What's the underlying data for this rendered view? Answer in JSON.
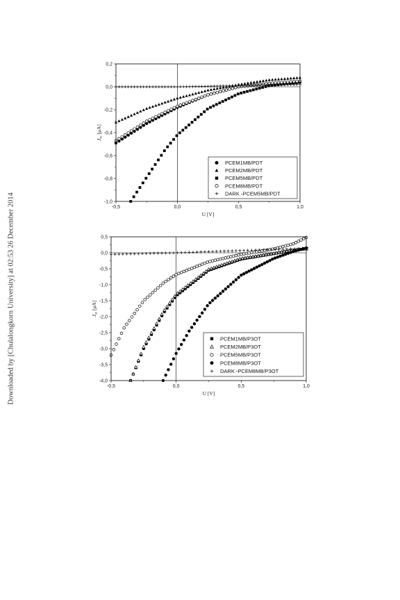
{
  "side_note": "Downloaded by [Chulalongkorn University] at 02:53 26 December 2014",
  "chart_data": [
    {
      "type": "scatter",
      "xlabel": "U [V]",
      "ylabel_main": "J",
      "ylabel_sub": "sc",
      "ylabel_unit": "[μA]",
      "xlim": [
        -0.5,
        1.0
      ],
      "ylim": [
        -1.0,
        0.2
      ],
      "xticks": [
        -0.5,
        0.0,
        0.5,
        1.0
      ],
      "xtick_labels": [
        "-0,5",
        "0,0",
        "0,5",
        "1,0"
      ],
      "yticks": [
        0.2,
        0.0,
        -0.2,
        -0.4,
        -0.6,
        -0.8,
        -1.0
      ],
      "ytick_labels": [
        "0,2",
        "0,0",
        "-0,2",
        "-0,4",
        "-0,6",
        "-0,8",
        "-1,0"
      ],
      "zero_lines": true,
      "legend_position": "bottom-right",
      "series": [
        {
          "name": "PCEM1MB/PDT",
          "marker": "filled-circle",
          "step": 0.025,
          "x": [
            -0.5,
            -0.25,
            0.0,
            0.25,
            0.5,
            0.75,
            1.0
          ],
          "y": [
            -0.49,
            -0.32,
            -0.18,
            -0.07,
            0.0,
            0.03,
            0.04
          ]
        },
        {
          "name": "PCEM2MB/PDT",
          "marker": "filled-triangle",
          "step": 0.025,
          "x": [
            -0.5,
            -0.25,
            0.0,
            0.25,
            0.5,
            0.75,
            1.0
          ],
          "y": [
            -0.31,
            -0.19,
            -0.1,
            -0.03,
            0.02,
            0.06,
            0.08
          ]
        },
        {
          "name": "PCEM5MB/PDT",
          "marker": "filled-square",
          "step": 0.025,
          "x": [
            -0.38,
            -0.25,
            -0.1,
            0.0,
            0.25,
            0.5,
            0.75,
            1.0
          ],
          "y": [
            -1.0,
            -0.79,
            -0.55,
            -0.42,
            -0.19,
            -0.06,
            0.01,
            0.04
          ]
        },
        {
          "name": "PCEM8MB/PDT",
          "marker": "open-circle",
          "step": 0.025,
          "x": [
            -0.5,
            -0.25,
            0.0,
            0.25,
            0.5,
            0.75,
            1.0
          ],
          "y": [
            -0.47,
            -0.3,
            -0.17,
            -0.07,
            0.0,
            0.03,
            0.05
          ]
        },
        {
          "name": "DARK -PCEM5MB/PDT",
          "marker": "plus",
          "step": 0.025,
          "x": [
            -0.5,
            0.0,
            0.5,
            1.0
          ],
          "y": [
            0.0,
            0.0,
            0.01,
            0.02
          ]
        }
      ]
    },
    {
      "type": "scatter",
      "xlabel": "U [V]",
      "ylabel_main": "J",
      "ylabel_sub": "sc",
      "ylabel_unit": "[μA]",
      "xlim": [
        -0.5,
        1.0
      ],
      "ylim": [
        -4.0,
        0.5
      ],
      "xticks": [
        -0.5,
        0.0,
        0.5,
        1.0
      ],
      "xtick_labels": [
        "-0,5",
        "0,0",
        "0,5",
        "1,0"
      ],
      "yticks": [
        0.5,
        0.0,
        -0.5,
        -1.0,
        -1.5,
        -2.0,
        -2.5,
        -3.0,
        -3.5,
        -4.0
      ],
      "ytick_labels": [
        "0,5",
        "0,0",
        "-0,5",
        "-1,0",
        "-1,5",
        "-2,0",
        "-2,5",
        "-3,0",
        "-3,5",
        "-4,0"
      ],
      "zero_lines": true,
      "legend_position": "bottom-right",
      "series": [
        {
          "name": "PCEM1MB/P3OT",
          "marker": "filled-square",
          "step": 0.02,
          "x": [
            -0.35,
            -0.25,
            -0.1,
            0.0,
            0.25,
            0.5,
            0.75,
            0.9,
            1.0
          ],
          "y": [
            -4.0,
            -3.0,
            -1.9,
            -1.35,
            -0.55,
            -0.2,
            -0.03,
            0.08,
            0.12
          ]
        },
        {
          "name": "PCEM2MB/P3OT",
          "marker": "open-triangle",
          "step": 0.02,
          "x": [
            -0.35,
            -0.25,
            -0.1,
            0.0,
            0.25,
            0.5,
            0.75,
            0.9,
            1.0
          ],
          "y": [
            -4.0,
            -2.95,
            -1.85,
            -1.3,
            -0.52,
            -0.18,
            -0.02,
            0.09,
            0.13
          ]
        },
        {
          "name": "PCEM5MB/P3OT",
          "marker": "open-circle",
          "step": 0.02,
          "x": [
            -0.5,
            -0.4,
            -0.25,
            -0.1,
            0.0,
            0.25,
            0.5,
            0.75,
            0.9,
            1.0
          ],
          "y": [
            -3.2,
            -2.35,
            -1.5,
            -0.95,
            -0.68,
            -0.28,
            -0.05,
            0.12,
            0.28,
            0.48
          ]
        },
        {
          "name": "PCEM8MB/P3OT",
          "marker": "filled-circle",
          "step": 0.02,
          "x": [
            -0.1,
            0.0,
            0.1,
            0.25,
            0.5,
            0.75,
            0.9,
            1.0
          ],
          "y": [
            -4.0,
            -3.15,
            -2.45,
            -1.6,
            -0.7,
            -0.18,
            0.04,
            0.15
          ]
        },
        {
          "name": "DARK -PCEM8MB/P3OT",
          "marker": "plus",
          "step": 0.03,
          "x": [
            -0.5,
            0.0,
            0.5,
            0.9,
            1.0
          ],
          "y": [
            -0.05,
            0.0,
            0.07,
            0.12,
            0.15
          ]
        }
      ]
    }
  ]
}
